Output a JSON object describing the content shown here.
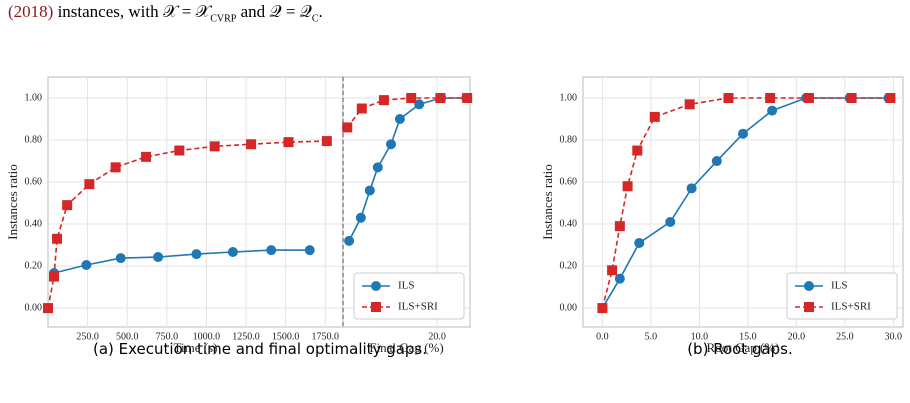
{
  "header": {
    "parts": [
      "(2018)",
      " instances, with 𝒳 = 𝒳",
      "CVRP",
      " and 𝒬 = 𝒬",
      "C",
      "."
    ]
  },
  "captions": [
    "(a) Execution time and final optimality gaps.",
    "(b) Root gaps."
  ],
  "chart_data": [
    {
      "type": "line",
      "ylabel": "Instances ratio",
      "xlabel": "Time (s)",
      "xlim": [
        0,
        1862
      ],
      "ylim": [
        -0.09,
        1.1
      ],
      "grid": true,
      "xticks": [
        {
          "value": 250,
          "label": "250.0"
        },
        {
          "value": 500,
          "label": "500.0"
        },
        {
          "value": 750,
          "label": "750.0"
        },
        {
          "value": 1000,
          "label": "1000.0"
        },
        {
          "value": 1250,
          "label": "1250.0"
        },
        {
          "value": 1500,
          "label": "1500.0"
        },
        {
          "value": 1750,
          "label": "1750.0"
        }
      ],
      "yticks": [
        {
          "value": 0,
          "label": "0.00"
        },
        {
          "value": 0.2,
          "label": "0.20"
        },
        {
          "value": 0.4,
          "label": "0.40"
        },
        {
          "value": 0.6,
          "label": "0.60"
        },
        {
          "value": 0.8,
          "label": "0.80"
        },
        {
          "value": 1,
          "label": "1.00"
        }
      ],
      "series": [
        {
          "color": "#1f77b4",
          "marker": "circle",
          "linestyle": "solid",
          "x": [
            38,
            242,
            459,
            695,
            937,
            1167,
            1409,
            1652
          ],
          "values": [
            0.167,
            0.205,
            0.238,
            0.243,
            0.257,
            0.267,
            0.276,
            0.276
          ]
        },
        {
          "color": "#d62728",
          "marker": "square",
          "linestyle": "dashed",
          "x": [
            0,
            38,
            57,
            121,
            261,
            427,
            619,
            829,
            1052,
            1282,
            1518,
            1760
          ],
          "values": [
            0,
            0.15,
            0.33,
            0.49,
            0.59,
            0.67,
            0.72,
            0.75,
            0.77,
            0.78,
            0.79,
            0.795
          ]
        }
      ]
    },
    {
      "type": "line",
      "xlabel": "Final Gap (%)",
      "xlim": [
        0,
        27
      ],
      "ylim": [
        -0.09,
        1.1
      ],
      "grid": true,
      "xticks": [
        {
          "value": 20,
          "label": "20.0"
        }
      ],
      "yticks": [
        0,
        0.2,
        0.4,
        0.6,
        0.8,
        1
      ],
      "legend": "lower right",
      "series": [
        {
          "name": "ILS",
          "color": "#1f77b4",
          "marker": "circle",
          "linestyle": "solid",
          "x": [
            1.3,
            3.8,
            5.7,
            7.4,
            10.2,
            12.1,
            16.2,
            20.9,
            26.2
          ],
          "values": [
            0.32,
            0.43,
            0.56,
            0.67,
            0.78,
            0.9,
            0.97,
            1,
            1
          ]
        },
        {
          "name": "ILS+SRI",
          "color": "#d62728",
          "marker": "square",
          "linestyle": "dashed",
          "x": [
            0.9,
            4,
            8.7,
            14.5,
            20.7,
            26.4
          ],
          "values": [
            0.86,
            0.95,
            0.99,
            1,
            1,
            1
          ]
        }
      ]
    },
    {
      "type": "line",
      "ylabel": "Instances ratio",
      "xlabel": "Root Gap (%)",
      "xlim": [
        -2,
        31
      ],
      "ylim": [
        -0.09,
        1.1
      ],
      "grid": true,
      "xticks": [
        {
          "value": 0,
          "label": "0.0"
        },
        {
          "value": 5,
          "label": "5.0"
        },
        {
          "value": 10,
          "label": "10.0"
        },
        {
          "value": 15,
          "label": "15.0"
        },
        {
          "value": 20,
          "label": "20.0"
        },
        {
          "value": 25,
          "label": "25.0"
        },
        {
          "value": 30,
          "label": "30.0"
        }
      ],
      "yticks": [
        {
          "value": 0,
          "label": "0.00"
        },
        {
          "value": 0.2,
          "label": "0.20"
        },
        {
          "value": 0.4,
          "label": "0.40"
        },
        {
          "value": 0.6,
          "label": "0.60"
        },
        {
          "value": 0.8,
          "label": "0.80"
        },
        {
          "value": 1,
          "label": "1.00"
        }
      ],
      "legend": "lower right",
      "series": [
        {
          "name": "ILS",
          "color": "#1f77b4",
          "marker": "circle",
          "linestyle": "solid",
          "x": [
            0,
            1.8,
            3.8,
            7,
            9.2,
            11.8,
            14.5,
            17.5,
            21,
            25.5,
            29.5
          ],
          "values": [
            0,
            0.14,
            0.31,
            0.41,
            0.57,
            0.7,
            0.83,
            0.94,
            1,
            1,
            1
          ]
        },
        {
          "name": "ILS+SRI",
          "color": "#d62728",
          "marker": "square",
          "linestyle": "dashed",
          "x": [
            0,
            1,
            1.8,
            2.6,
            3.6,
            5.4,
            9,
            13,
            17.3,
            21.3,
            25.7,
            29.7
          ],
          "values": [
            0,
            0.18,
            0.39,
            0.58,
            0.75,
            0.91,
            0.97,
            1,
            1,
            1,
            1,
            1
          ]
        }
      ]
    }
  ]
}
